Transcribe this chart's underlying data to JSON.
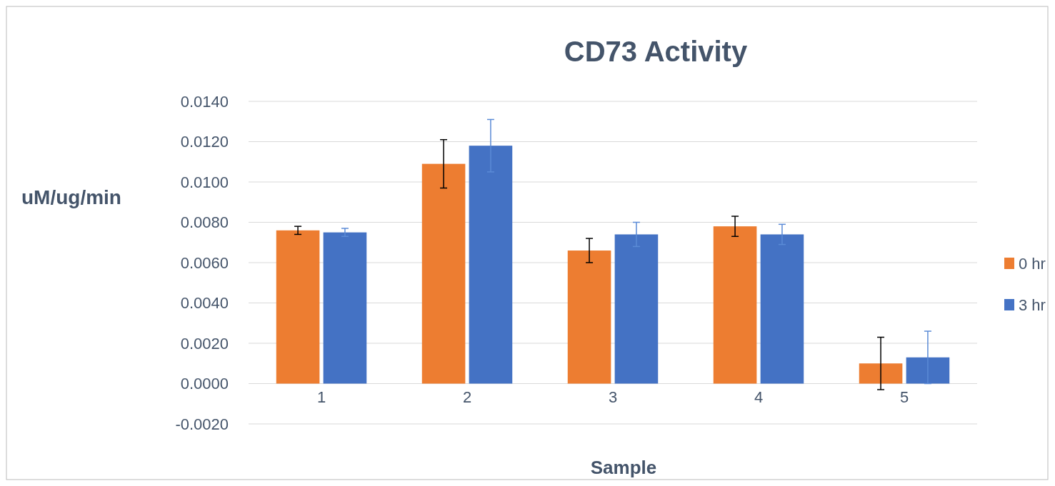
{
  "chart_data": {
    "type": "bar",
    "title": "CD73 Activity",
    "xlabel": "Sample",
    "ylabel": "uM/ug/min",
    "categories": [
      "1",
      "2",
      "3",
      "4",
      "5"
    ],
    "series": [
      {
        "name": "0 hr",
        "color": "#ed7d31",
        "values": [
          0.0076,
          0.0109,
          0.0066,
          0.0078,
          0.001
        ],
        "errors": [
          0.0002,
          0.0012,
          0.0006,
          0.0005,
          0.0013
        ]
      },
      {
        "name": "3 hr",
        "color": "#4472c4",
        "values": [
          0.0075,
          0.0118,
          0.0074,
          0.0074,
          0.0013
        ],
        "errors": [
          0.0002,
          0.0013,
          0.0006,
          0.0005,
          0.0013
        ]
      }
    ],
    "ylim": [
      -0.002,
      0.014
    ],
    "yticks": [
      {
        "value": -0.002,
        "label": "-0.0020"
      },
      {
        "value": 0,
        "label": "0.0000"
      },
      {
        "value": 0.002,
        "label": "0.0020"
      },
      {
        "value": 0.004,
        "label": "0.0040"
      },
      {
        "value": 0.006,
        "label": "0.0060"
      },
      {
        "value": 0.008,
        "label": "0.0080"
      },
      {
        "value": 0.01,
        "label": "0.0100"
      },
      {
        "value": 0.012,
        "label": "0.0120"
      },
      {
        "value": 0.014,
        "label": "0.0140"
      }
    ],
    "grid": "y",
    "legend": "right"
  }
}
